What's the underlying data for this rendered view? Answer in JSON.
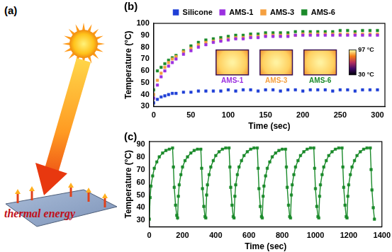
{
  "diagram": {
    "panel_label": "(a)",
    "text": "thermal energy"
  },
  "chart_data": [
    {
      "type": "line",
      "panel_label": "(b)",
      "x_label": "Time (sec)",
      "y_label": "Temperature (°C)",
      "x": [
        0,
        5,
        10,
        15,
        20,
        25,
        30,
        40,
        50,
        60,
        70,
        80,
        90,
        100,
        110,
        120,
        130,
        140,
        150,
        160,
        170,
        180,
        190,
        200,
        210,
        220,
        230,
        240,
        250,
        260,
        270,
        280,
        290,
        300
      ],
      "series": [
        {
          "name": "Silicone",
          "color": "#1f3fd6",
          "marker": "square",
          "line_style": "none",
          "values": [
            33,
            36,
            38,
            39,
            40,
            41,
            41,
            42,
            42,
            43,
            43,
            43,
            43,
            44,
            43,
            44,
            44,
            43,
            44,
            44,
            43,
            44,
            44,
            43,
            44,
            44,
            44,
            43,
            44,
            44,
            43,
            44,
            44,
            44
          ]
        },
        {
          "name": "AMS-1",
          "color": "#9b30e0",
          "marker": "square",
          "line_style": "none",
          "values": [
            37,
            48,
            55,
            60,
            64,
            67,
            70,
            74,
            77,
            80,
            82,
            84,
            85,
            86,
            87,
            87,
            88,
            88,
            89,
            89,
            89,
            89,
            90,
            90,
            90,
            90,
            90,
            90,
            90,
            90,
            90,
            90,
            90,
            90
          ]
        },
        {
          "name": "AMS-3",
          "color": "#f5a040",
          "marker": "square",
          "line_style": "none",
          "values": [
            40,
            52,
            58,
            63,
            67,
            70,
            72,
            76,
            79,
            82,
            84,
            85,
            86,
            87,
            88,
            88,
            89,
            89,
            90,
            90,
            90,
            90,
            90,
            91,
            91,
            91,
            91,
            91,
            91,
            91,
            91,
            91,
            91,
            91
          ]
        },
        {
          "name": "AMS-6",
          "color": "#1a8a2a",
          "marker": "square",
          "line_style": "none",
          "values": [
            44,
            60,
            63,
            66,
            69,
            71,
            73,
            77,
            81,
            84,
            86,
            87,
            88,
            89,
            90,
            90,
            91,
            91,
            92,
            92,
            92,
            92,
            93,
            93,
            93,
            93,
            93,
            93,
            94,
            94,
            93,
            94,
            94,
            94
          ]
        }
      ],
      "xlim": [
        0,
        310
      ],
      "xticks": [
        0,
        50,
        100,
        150,
        200,
        250,
        300
      ],
      "ylim": [
        30,
        100
      ],
      "yticks": [
        30,
        40,
        50,
        60,
        70,
        80,
        90,
        100
      ],
      "grid": false,
      "legend": "top",
      "insets": [
        {
          "label": "AMS-1",
          "color": "#9b30e0"
        },
        {
          "label": "AMS-3",
          "color": "#f5a040"
        },
        {
          "label": "AMS-6",
          "color": "#1a8a2a"
        }
      ],
      "colorbar": {
        "range": [
          30,
          97
        ],
        "ticks": [
          {
            "value": 97,
            "label": "97 °C"
          },
          {
            "value": 30,
            "label": "30 °C"
          }
        ]
      }
    },
    {
      "type": "line",
      "panel_label": "(c)",
      "x_label": "Time (sec)",
      "y_label": "Temperature (°C)",
      "x": [
        0,
        5,
        10,
        20,
        30,
        45,
        60,
        80,
        100,
        120,
        140,
        145,
        150,
        158,
        165,
        170,
        175,
        180,
        190,
        200,
        215,
        230,
        250,
        270,
        290,
        310,
        315,
        320,
        328,
        335,
        340,
        345,
        350,
        360,
        370,
        385,
        400,
        420,
        440,
        460,
        480,
        485,
        490,
        498,
        505,
        510,
        515,
        520,
        530,
        540,
        555,
        570,
        590,
        610,
        630,
        650,
        655,
        660,
        668,
        675,
        680,
        685,
        690,
        700,
        710,
        725,
        740,
        760,
        780,
        800,
        820,
        825,
        830,
        838,
        845,
        850,
        855,
        860,
        870,
        880,
        895,
        910,
        930,
        950,
        970,
        990,
        995,
        1000,
        1008,
        1015,
        1020,
        1025,
        1030,
        1040,
        1050,
        1065,
        1080,
        1100,
        1120,
        1140,
        1160,
        1165,
        1170,
        1178,
        1185,
        1190,
        1195,
        1200,
        1210,
        1220,
        1235,
        1250,
        1270,
        1290,
        1310,
        1330,
        1335,
        1340,
        1348,
        1355
      ],
      "series": [
        {
          "color": "#1a8a2a",
          "marker": "square",
          "line_style": "solid",
          "values": [
            31,
            48,
            57,
            65,
            71,
            76,
            80,
            83,
            85,
            86,
            87,
            72,
            56,
            42,
            34,
            32,
            49,
            58,
            66,
            72,
            77,
            80,
            83,
            85,
            86,
            86,
            71,
            55,
            41,
            33,
            32,
            50,
            58,
            66,
            72,
            77,
            81,
            84,
            86,
            87,
            87,
            72,
            56,
            42,
            33,
            32,
            49,
            58,
            66,
            72,
            77,
            81,
            84,
            86,
            87,
            87,
            71,
            55,
            41,
            33,
            32,
            49,
            57,
            65,
            71,
            76,
            80,
            83,
            85,
            86,
            86,
            72,
            56,
            42,
            33,
            32,
            50,
            58,
            66,
            72,
            77,
            81,
            84,
            86,
            87,
            87,
            71,
            55,
            41,
            33,
            32,
            49,
            58,
            66,
            72,
            77,
            81,
            84,
            86,
            87,
            87,
            72,
            56,
            42,
            33,
            32,
            49,
            58,
            66,
            72,
            77,
            81,
            84,
            86,
            87,
            87,
            70,
            54,
            40,
            31
          ]
        }
      ],
      "xlim": [
        0,
        1400
      ],
      "xticks": [
        0,
        200,
        400,
        600,
        800,
        1000,
        1200,
        1400
      ],
      "ylim": [
        25,
        92
      ],
      "yticks": [
        30,
        40,
        50,
        60,
        70,
        80,
        90
      ],
      "grid": false
    }
  ]
}
